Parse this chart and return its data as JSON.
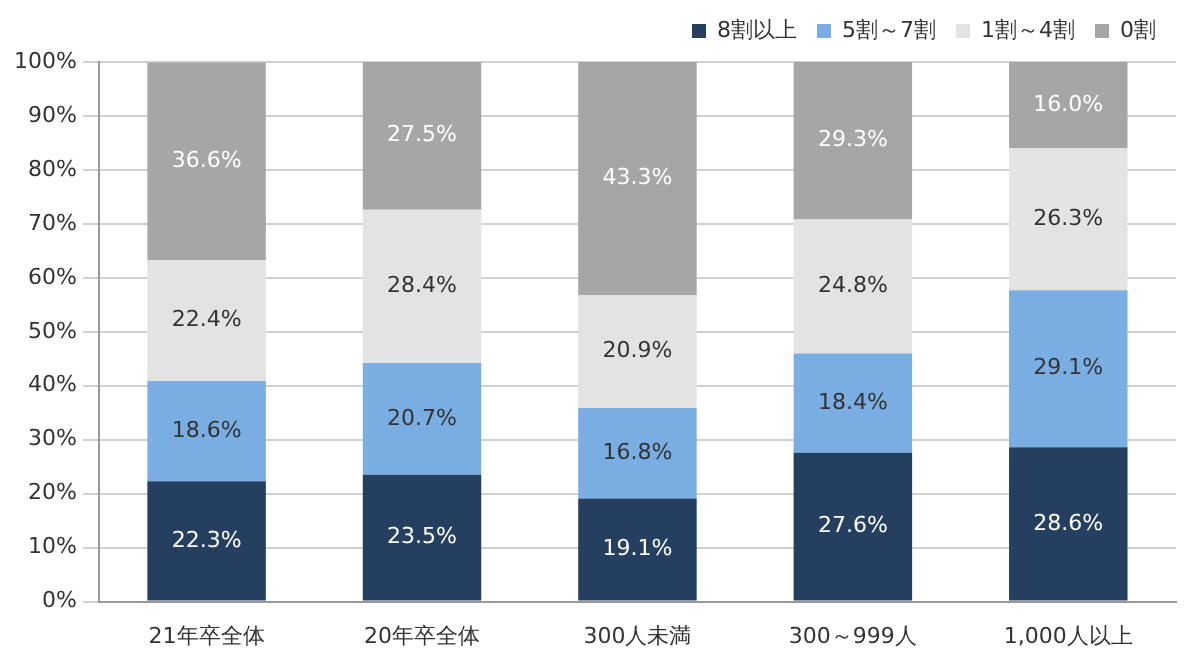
{
  "chart_data": {
    "type": "bar",
    "stacked": true,
    "categories": [
      "21年卒全体",
      "20年卒全体",
      "300人未満",
      "300～999人",
      "1,000人以上"
    ],
    "series": [
      {
        "name": "8割以上",
        "color": "#243f60",
        "values": [
          22.3,
          23.5,
          19.1,
          27.6,
          28.6
        ],
        "value_labels": [
          "22.3%",
          "23.5%",
          "19.1%",
          "27.6%",
          "28.6%"
        ]
      },
      {
        "name": "5割～7割",
        "color": "#7aaee3",
        "values": [
          18.6,
          20.7,
          16.8,
          18.4,
          29.1
        ],
        "value_labels": [
          "18.6%",
          "20.7%",
          "16.8%",
          "18.4%",
          "29.1%"
        ]
      },
      {
        "name": "1割～4割",
        "color": "#e3e3e3",
        "values": [
          22.4,
          28.4,
          20.9,
          24.8,
          26.3
        ],
        "value_labels": [
          "22.4%",
          "28.4%",
          "20.9%",
          "24.8%",
          "26.3%"
        ]
      },
      {
        "name": "0割",
        "color": "#a6a6a6",
        "values": [
          36.6,
          27.5,
          43.3,
          29.3,
          16.0
        ],
        "value_labels": [
          "36.6%",
          "27.5%",
          "43.3%",
          "29.3%",
          "16.0%"
        ]
      }
    ],
    "ylim": [
      0,
      100
    ],
    "yticks": [
      {
        "value": 0,
        "label": "0%"
      },
      {
        "value": 10,
        "label": "10%"
      },
      {
        "value": 20,
        "label": "20%"
      },
      {
        "value": 30,
        "label": "30%"
      },
      {
        "value": 40,
        "label": "40%"
      },
      {
        "value": 50,
        "label": "50%"
      },
      {
        "value": 60,
        "label": "60%"
      },
      {
        "value": 70,
        "label": "70%"
      },
      {
        "value": 80,
        "label": "80%"
      },
      {
        "value": 90,
        "label": "90%"
      },
      {
        "value": 100,
        "label": "100%"
      }
    ],
    "grid": "y",
    "legend": "top right"
  }
}
